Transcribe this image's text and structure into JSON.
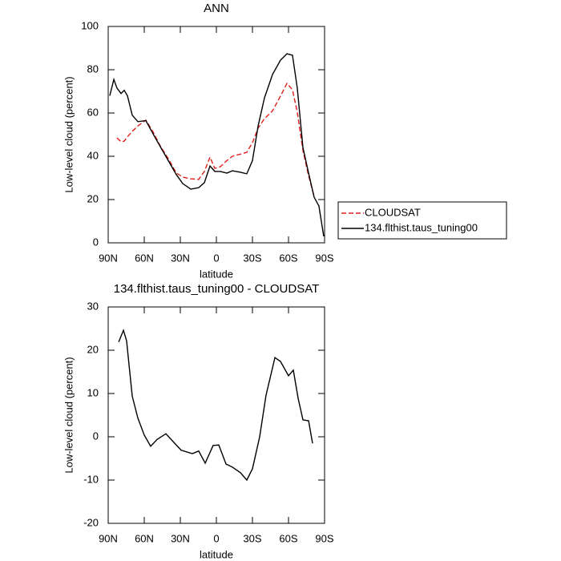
{
  "chart_data": [
    {
      "type": "line",
      "title": "ANN",
      "xlabel": "latitude",
      "ylabel": "Low-level cloud (percent)",
      "x": [
        88.7,
        85.3,
        82.7,
        79.3,
        76.7,
        74,
        70,
        65.3,
        58.7,
        53.3,
        46.7,
        40,
        33.3,
        28,
        21.3,
        14.7,
        10,
        5.3,
        1.3,
        -3.3,
        -8.7,
        -13.3,
        -20,
        -25.3,
        -30,
        -34.7,
        -40,
        -46.7,
        -53.3,
        -58.7,
        -63.3,
        -67.3,
        -72,
        -76.7,
        -81.3,
        -85.3,
        -89.3
      ],
      "series": [
        {
          "name": "CLOUDSAT",
          "color": "#e0201c",
          "dash": true,
          "values": [
            null,
            null,
            48.5,
            46.7,
            47,
            49,
            51.5,
            54,
            56.7,
            51.9,
            44.8,
            38.9,
            32.2,
            30.4,
            29.6,
            29.3,
            33,
            39.6,
            34.4,
            35.2,
            38,
            40,
            41,
            41.8,
            46.3,
            53,
            57.4,
            61,
            67.8,
            73.7,
            70.7,
            60.4,
            42.6,
            31,
            21.5,
            null,
            null
          ]
        },
        {
          "name": "134.flthist.taus_tuning00",
          "color": "#000000",
          "dash": false,
          "values": [
            68,
            75.5,
            71.5,
            69,
            70.5,
            68,
            59,
            56,
            56.5,
            51,
            44.5,
            38,
            31.5,
            27.4,
            24.8,
            25.5,
            27.8,
            35.5,
            33,
            33,
            32.2,
            33.3,
            32.6,
            31.9,
            38,
            54,
            67,
            77.8,
            84.4,
            87.4,
            86.7,
            71.5,
            44,
            32.2,
            21.1,
            17,
            3
          ]
        }
      ],
      "xlim": [
        90,
        -90
      ],
      "xticks": [
        {
          "value": 90,
          "label": "90N"
        },
        {
          "value": 60,
          "label": "60N"
        },
        {
          "value": 30,
          "label": "30N"
        },
        0,
        {
          "value": -30,
          "label": "30S"
        },
        {
          "value": -60,
          "label": "60S"
        },
        {
          "value": -90,
          "label": "90S"
        }
      ],
      "ylim": [
        0,
        100
      ],
      "yticks": [
        0,
        20,
        40,
        60,
        80,
        100
      ],
      "legend": "outside-right"
    },
    {
      "type": "line",
      "title": "134.flthist.taus_tuning00 - CLOUDSAT",
      "xlabel": "latitude",
      "ylabel": "Low-level cloud (percent)",
      "x": [
        81.3,
        77.3,
        74.7,
        70,
        65.3,
        60,
        54.7,
        49.3,
        42,
        36.7,
        29.3,
        20,
        14.7,
        9.3,
        2.7,
        -2,
        -8,
        -13.3,
        -20,
        -25.3,
        -30,
        -36,
        -41.3,
        -48.7,
        -53.3,
        -60,
        -64,
        -68,
        -72,
        -76.7,
        -80
      ],
      "series": [
        {
          "color": "#000000",
          "dash": false,
          "values": [
            21.9,
            24.6,
            22.2,
            9.4,
            4.3,
            0.4,
            -2.2,
            -0.6,
            0.7,
            -0.9,
            -3.1,
            -3.9,
            -3.3,
            -6.1,
            -2,
            -1.9,
            -6.3,
            -7,
            -8.3,
            -10,
            -7.4,
            0,
            9.6,
            18.3,
            17.4,
            14.1,
            15.4,
            8.9,
            3.9,
            3.7,
            -1.5
          ]
        }
      ],
      "xlim": [
        90,
        -90
      ],
      "xticks": [
        {
          "value": 90,
          "label": "90N"
        },
        {
          "value": 60,
          "label": "60N"
        },
        {
          "value": 30,
          "label": "30N"
        },
        0,
        {
          "value": -30,
          "label": "30S"
        },
        {
          "value": -60,
          "label": "60S"
        },
        {
          "value": -90,
          "label": "90S"
        }
      ],
      "ylim": [
        -20,
        30
      ],
      "yticks": [
        -20,
        -10,
        0,
        10,
        20,
        30
      ]
    }
  ]
}
